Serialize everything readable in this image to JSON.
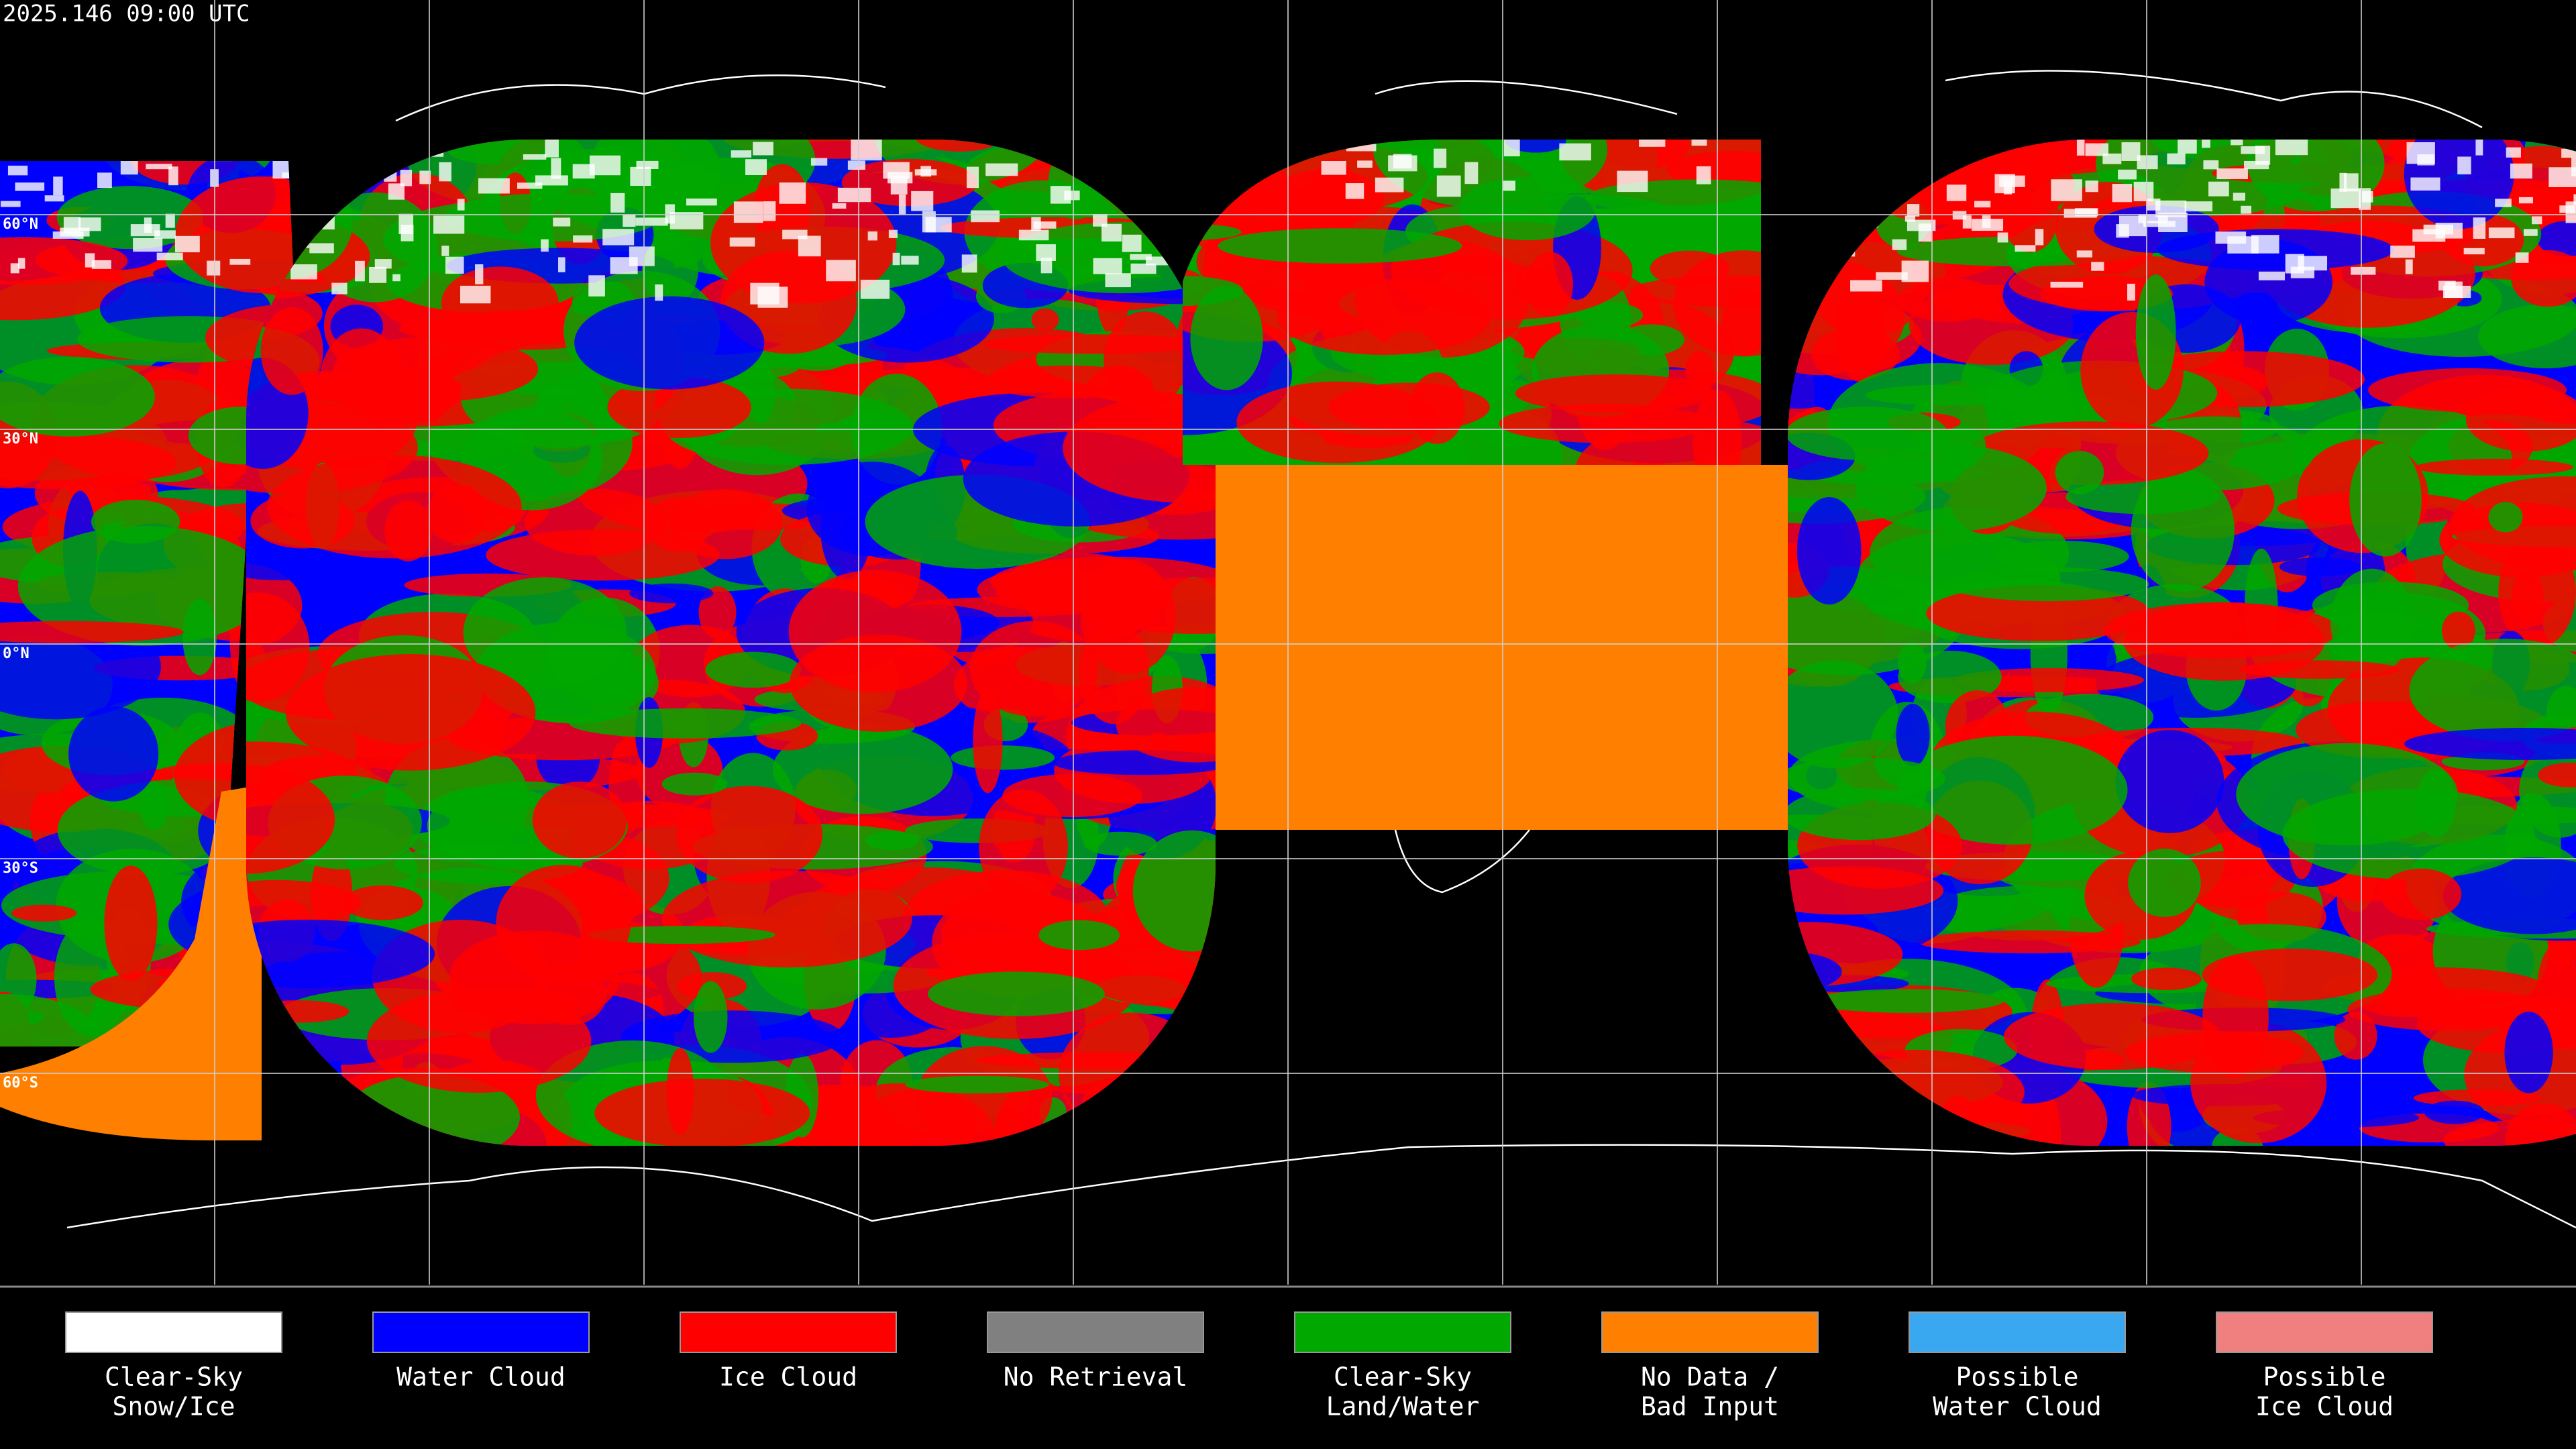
{
  "timestamp": "2025.146 09:00 UTC",
  "latitude_labels": [
    "60°N",
    "30°N",
    "0°N",
    "30°S",
    "60°S"
  ],
  "legend": [
    {
      "label": [
        "Clear-Sky",
        "Snow/Ice"
      ],
      "color": "#ffffff"
    },
    {
      "label": [
        "Water Cloud"
      ],
      "color": "#0000ff"
    },
    {
      "label": [
        "Ice Cloud"
      ],
      "color": "#ff0000"
    },
    {
      "label": [
        "No Retrieval"
      ],
      "color": "#808080"
    },
    {
      "label": [
        "Clear-Sky",
        "Land/Water"
      ],
      "color": "#00a800"
    },
    {
      "label": [
        "No Data /",
        "Bad Input"
      ],
      "color": "#ff8000"
    },
    {
      "label": [
        "Possible",
        "Water Cloud"
      ],
      "color": "#3aa8f0"
    },
    {
      "label": [
        "Possible",
        "Ice Cloud"
      ],
      "color": "#f08080"
    }
  ]
}
